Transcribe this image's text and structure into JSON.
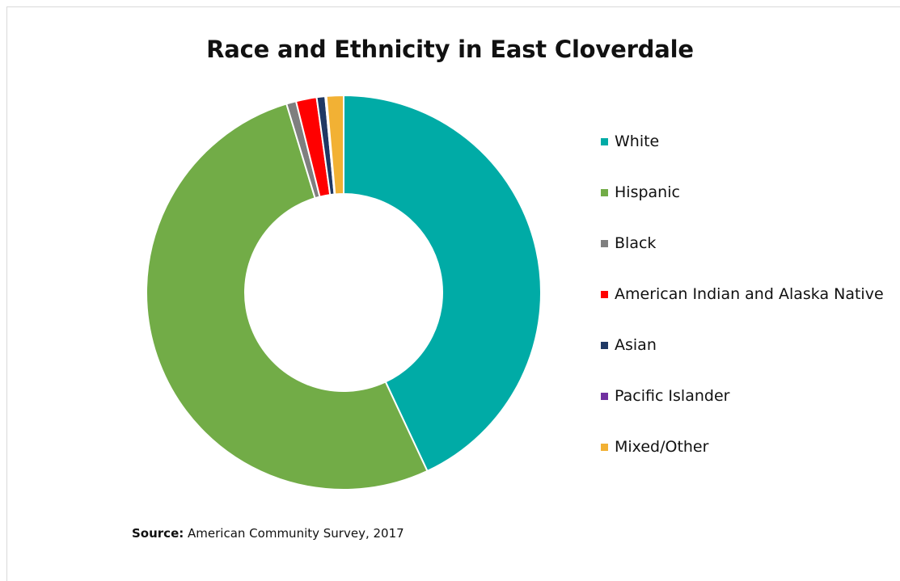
{
  "chart_data": {
    "type": "pie",
    "variant": "donut",
    "title": "Race and Ethnicity in East Cloverdale",
    "categories": [
      "White",
      "Hispanic",
      "Black",
      "American Indian and Alaska Native",
      "Asian",
      "Pacific Islander",
      "Mixed/Other"
    ],
    "values": [
      43.2,
      52.5,
      0.8,
      1.7,
      0.7,
      0.1,
      1.4
    ],
    "colors": [
      "#00aba6",
      "#72ac47",
      "#7f7f7f",
      "#ff0000",
      "#1f3864",
      "#7030a0",
      "#f2b134"
    ],
    "legend_position": "right",
    "source_label": "Source:",
    "source_text": "American Community Survey, 2017"
  }
}
